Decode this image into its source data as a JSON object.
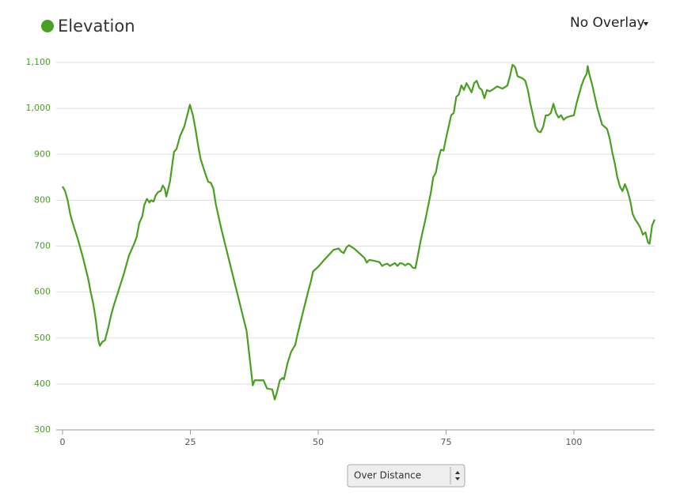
{
  "chart_data": {
    "type": "line",
    "title": "Elevation",
    "color": "#4a9e22",
    "x": [
      0,
      0.5,
      1,
      1.5,
      2,
      3,
      4,
      5,
      5.5,
      6,
      6.5,
      7,
      7.3,
      7.8,
      8.3,
      9,
      9.5,
      10,
      11,
      12,
      13,
      14,
      14.5,
      15,
      15.6,
      16,
      16.5,
      17,
      17.3,
      17.8,
      18.2,
      18.7,
      19.2,
      19.6,
      20,
      20.3,
      21,
      21.8,
      22.3,
      23,
      23.8,
      24.5,
      24.9,
      25.5,
      26,
      26.5,
      27,
      28,
      28.5,
      29,
      29.5,
      30,
      31,
      32,
      33,
      34,
      35,
      36,
      37.2,
      37.6,
      39.3,
      40,
      41,
      41.5,
      42,
      42.5,
      43,
      43.3,
      44,
      44.7,
      45.5,
      46,
      47,
      48,
      48.5,
      49,
      50,
      51,
      52,
      53,
      54,
      54.5,
      55,
      55.5,
      56,
      57,
      58,
      59,
      59.5,
      60,
      61,
      62,
      62.5,
      63,
      63.5,
      64,
      65,
      65.5,
      66,
      66.5,
      67,
      67.5,
      68,
      68.5,
      69,
      69.5,
      70,
      71,
      72,
      72.5,
      73,
      73.5,
      74,
      74.5,
      75,
      75.5,
      76,
      76.5,
      77,
      77.5,
      78,
      78.5,
      79,
      79.5,
      80,
      80.5,
      81,
      81.5,
      82,
      82.5,
      83,
      83.5,
      84,
      85,
      86,
      86.5,
      87,
      87.5,
      88,
      88.5,
      89,
      90,
      90.5,
      91,
      91.5,
      92,
      92.5,
      93,
      93.5,
      94,
      94.5,
      95,
      95.5,
      96,
      96.5,
      97,
      97.5,
      98,
      98.5,
      99,
      100,
      100.5,
      101,
      101.5,
      102,
      102.5,
      102.7,
      103,
      103.5,
      104,
      104.5,
      105,
      105.5,
      106,
      106.5,
      107,
      107.5,
      108,
      108.5,
      109,
      109.5,
      110,
      110.5,
      111,
      111.5,
      112,
      112.5,
      113,
      113.5,
      114,
      114.5,
      114.8,
      115.3,
      115.8
    ],
    "values": [
      830,
      820,
      800,
      770,
      750,
      715,
      675,
      630,
      600,
      575,
      540,
      495,
      483,
      492,
      495,
      525,
      550,
      570,
      605,
      640,
      680,
      705,
      720,
      750,
      765,
      790,
      803,
      795,
      800,
      797,
      810,
      818,
      820,
      832,
      825,
      808,
      840,
      905,
      912,
      940,
      960,
      990,
      1008,
      985,
      955,
      920,
      890,
      855,
      840,
      838,
      825,
      790,
      740,
      695,
      650,
      605,
      560,
      515,
      397,
      408,
      408,
      390,
      388,
      366,
      385,
      408,
      413,
      410,
      445,
      470,
      485,
      510,
      555,
      600,
      620,
      645,
      655,
      668,
      680,
      692,
      695,
      688,
      685,
      697,
      702,
      695,
      685,
      675,
      664,
      670,
      668,
      665,
      657,
      660,
      662,
      657,
      663,
      657,
      663,
      662,
      658,
      662,
      660,
      653,
      652,
      680,
      710,
      760,
      815,
      850,
      860,
      890,
      910,
      908,
      935,
      960,
      985,
      990,
      1025,
      1030,
      1050,
      1040,
      1055,
      1045,
      1035,
      1055,
      1060,
      1045,
      1040,
      1022,
      1040,
      1037,
      1040,
      1048,
      1043,
      1046,
      1050,
      1070,
      1095,
      1090,
      1070,
      1065,
      1060,
      1040,
      1010,
      985,
      960,
      950,
      948,
      960,
      985,
      985,
      990,
      1010,
      990,
      980,
      985,
      975,
      980,
      982,
      985,
      1010,
      1030,
      1050,
      1065,
      1075,
      1092,
      1075,
      1055,
      1030,
      1005,
      985,
      965,
      960,
      955,
      935,
      905,
      880,
      850,
      830,
      820,
      835,
      820,
      800,
      770,
      758,
      750,
      740,
      725,
      730,
      708,
      705,
      745,
      758
    ],
    "xlim": [
      0,
      115.8
    ],
    "xticks": [
      0,
      25,
      50,
      75,
      100
    ],
    "ylim": [
      300,
      1100
    ],
    "yticks": [
      300,
      400,
      500,
      600,
      700,
      800,
      900,
      {
        "value": 1000,
        "label": "1,000"
      },
      {
        "value": 1100,
        "label": "1,100"
      }
    ],
    "grid": true
  },
  "controls": {
    "overlay": "No Overlay",
    "mode": "Over Distance"
  }
}
